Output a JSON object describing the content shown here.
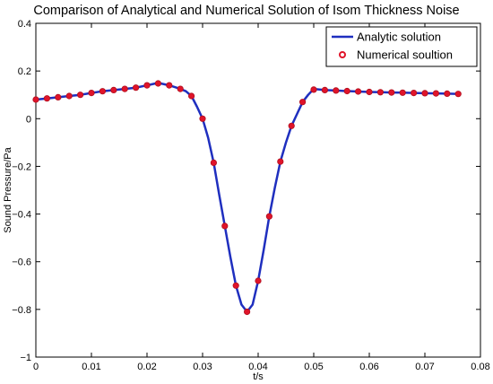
{
  "chart_data": {
    "type": "line",
    "title": "Comparison of Analytical and Numerical Solution of Isom Thickness Noise",
    "xlabel": "t/s",
    "ylabel": "Sound Pressure/Pa",
    "xlim": [
      0,
      0.08
    ],
    "ylim": [
      -1,
      0.4
    ],
    "xticks": [
      0,
      0.01,
      0.02,
      0.03,
      0.04,
      0.05,
      0.06,
      0.07,
      0.08
    ],
    "xtick_labels": [
      "0",
      "0.01",
      "0.02",
      "0.03",
      "0.04",
      "0.05",
      "0.06",
      "0.07",
      "0.08"
    ],
    "yticks": [
      -1,
      -0.8,
      -0.6,
      -0.4,
      -0.2,
      0,
      0.2,
      0.4
    ],
    "ytick_labels": [
      "−1",
      "−0.8",
      "−0.6",
      "−0.4",
      "−0.2",
      "0",
      "0.2",
      "0.4"
    ],
    "grid": false,
    "legend_position": "top-right",
    "series": [
      {
        "name": "Analytic solution",
        "style": "line",
        "color": "#1f2fbf",
        "x": [
          0,
          0.002,
          0.004,
          0.006,
          0.008,
          0.01,
          0.012,
          0.014,
          0.016,
          0.018,
          0.02,
          0.022,
          0.024,
          0.026,
          0.027,
          0.028,
          0.029,
          0.03,
          0.031,
          0.032,
          0.033,
          0.034,
          0.035,
          0.036,
          0.037,
          0.038,
          0.039,
          0.04,
          0.041,
          0.042,
          0.043,
          0.044,
          0.045,
          0.046,
          0.047,
          0.048,
          0.049,
          0.05,
          0.052,
          0.054,
          0.056,
          0.058,
          0.06,
          0.062,
          0.064,
          0.066,
          0.068,
          0.07,
          0.072,
          0.074,
          0.076
        ],
        "y": [
          0.08,
          0.085,
          0.09,
          0.095,
          0.1,
          0.108,
          0.115,
          0.12,
          0.125,
          0.13,
          0.14,
          0.15,
          0.14,
          0.125,
          0.115,
          0.095,
          0.05,
          0.0,
          -0.08,
          -0.185,
          -0.32,
          -0.45,
          -0.58,
          -0.7,
          -0.78,
          -0.81,
          -0.78,
          -0.68,
          -0.55,
          -0.41,
          -0.29,
          -0.18,
          -0.1,
          -0.03,
          0.02,
          0.07,
          0.1,
          0.125,
          0.12,
          0.118,
          0.116,
          0.114,
          0.112,
          0.111,
          0.11,
          0.109,
          0.108,
          0.107,
          0.106,
          0.105,
          0.104
        ]
      },
      {
        "name": "Numerical soultion",
        "style": "markers",
        "color": "#e0142a",
        "x": [
          0,
          0.002,
          0.004,
          0.006,
          0.008,
          0.01,
          0.012,
          0.014,
          0.016,
          0.018,
          0.02,
          0.022,
          0.024,
          0.026,
          0.028,
          0.03,
          0.032,
          0.034,
          0.036,
          0.038,
          0.04,
          0.042,
          0.044,
          0.046,
          0.048,
          0.05,
          0.052,
          0.054,
          0.056,
          0.058,
          0.06,
          0.062,
          0.064,
          0.066,
          0.068,
          0.07,
          0.072,
          0.074,
          0.076
        ],
        "y": [
          0.08,
          0.085,
          0.09,
          0.095,
          0.1,
          0.108,
          0.115,
          0.12,
          0.125,
          0.13,
          0.14,
          0.148,
          0.14,
          0.125,
          0.095,
          0.0,
          -0.185,
          -0.45,
          -0.7,
          -0.81,
          -0.68,
          -0.41,
          -0.18,
          -0.03,
          0.07,
          0.122,
          0.12,
          0.118,
          0.116,
          0.114,
          0.112,
          0.111,
          0.11,
          0.109,
          0.108,
          0.107,
          0.106,
          0.105,
          0.104
        ]
      }
    ]
  }
}
